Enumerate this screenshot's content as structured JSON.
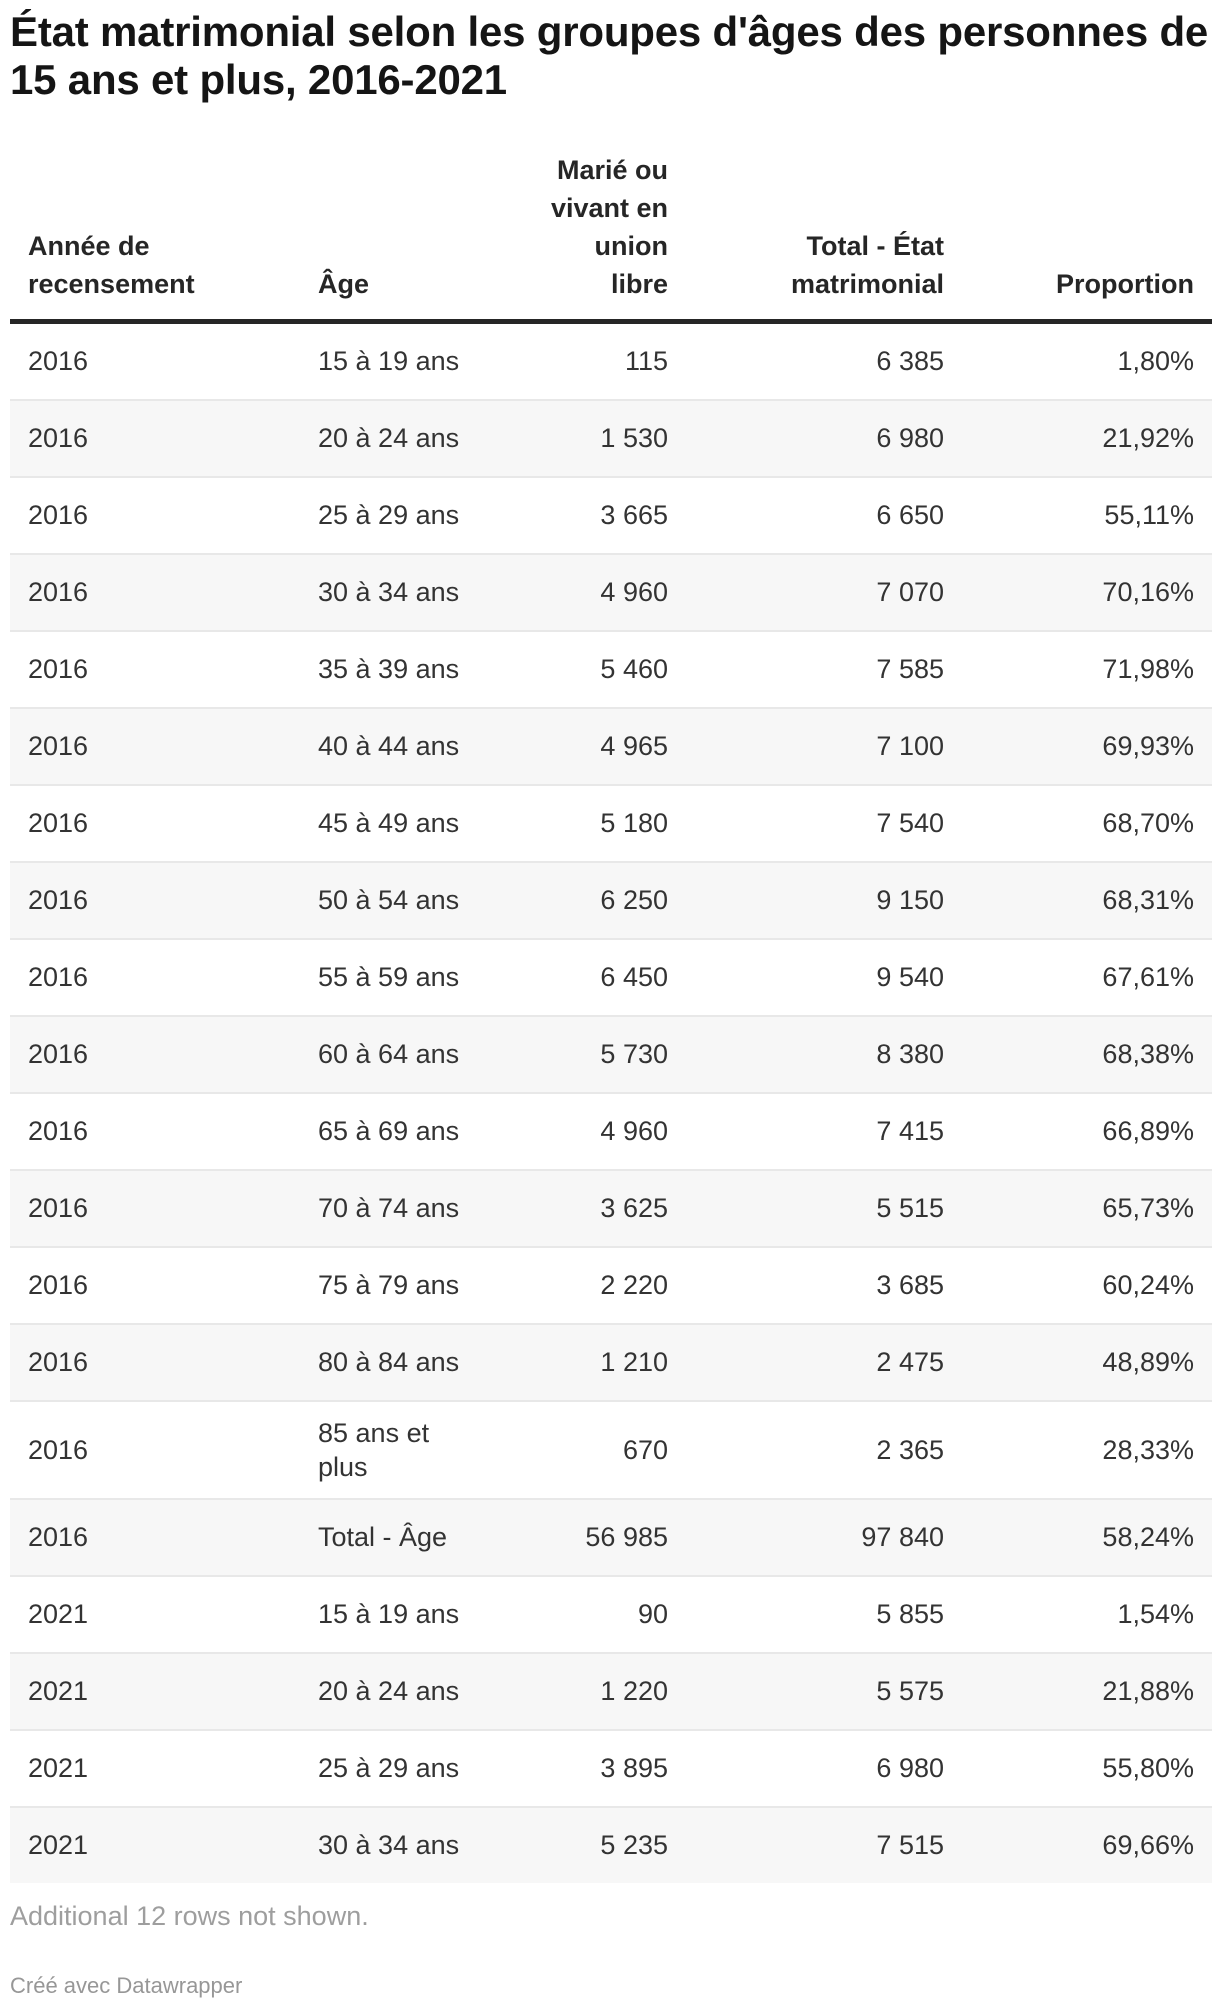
{
  "display": {
    "title": "État matrimonial selon les groupes d'âges des personnes de\n15 ans et plus, 2016-2021",
    "columns": [
      {
        "label": "Année de\nrecensement",
        "align": "left"
      },
      {
        "label": "Âge",
        "align": "left"
      },
      {
        "label": "Marié ou\nvivant en\nunion\nlibre",
        "align": "right"
      },
      {
        "label": "Total - État\nmatrimonial",
        "align": "right"
      },
      {
        "label": "Proportion",
        "align": "right"
      }
    ],
    "rows": [
      [
        "2016",
        "15 à 19 ans",
        "115",
        "6 385",
        "1,80%"
      ],
      [
        "2016",
        "20 à 24 ans",
        "1 530",
        "6 980",
        "21,92%"
      ],
      [
        "2016",
        "25 à 29 ans",
        "3 665",
        "6 650",
        "55,11%"
      ],
      [
        "2016",
        "30 à 34 ans",
        "4 960",
        "7 070",
        "70,16%"
      ],
      [
        "2016",
        "35 à 39 ans",
        "5 460",
        "7 585",
        "71,98%"
      ],
      [
        "2016",
        "40 à 44 ans",
        "4 965",
        "7 100",
        "69,93%"
      ],
      [
        "2016",
        "45 à 49 ans",
        "5 180",
        "7 540",
        "68,70%"
      ],
      [
        "2016",
        "50 à 54 ans",
        "6 250",
        "9 150",
        "68,31%"
      ],
      [
        "2016",
        "55 à 59 ans",
        "6 450",
        "9 540",
        "67,61%"
      ],
      [
        "2016",
        "60 à 64 ans",
        "5 730",
        "8 380",
        "68,38%"
      ],
      [
        "2016",
        "65 à 69 ans",
        "4 960",
        "7 415",
        "66,89%"
      ],
      [
        "2016",
        "70 à 74 ans",
        "3 625",
        "5 515",
        "65,73%"
      ],
      [
        "2016",
        "75 à 79 ans",
        "2 220",
        "3 685",
        "60,24%"
      ],
      [
        "2016",
        "80 à 84 ans",
        "1 210",
        "2 475",
        "48,89%"
      ],
      [
        "2016",
        "85 ans et\nplus",
        "670",
        "2 365",
        "28,33%"
      ],
      [
        "2016",
        "Total - Âge",
        "56 985",
        "97 840",
        "58,24%"
      ],
      [
        "2021",
        "15 à 19 ans",
        "90",
        "5 855",
        "1,54%"
      ],
      [
        "2021",
        "20 à 24 ans",
        "1 220",
        "5 575",
        "21,88%"
      ],
      [
        "2021",
        "25 à 29 ans",
        "3 895",
        "6 980",
        "55,80%"
      ],
      [
        "2021",
        "30 à 34 ans",
        "5 235",
        "7 515",
        "69,66%"
      ]
    ],
    "note": "Additional 12 rows not shown.",
    "attribution": "Créé avec Datawrapper"
  },
  "chart_data": {
    "type": "table",
    "title": "État matrimonial selon les groupes d'âges des personnes de 15 ans et plus, 2016-2021",
    "columns": [
      "Année de recensement",
      "Âge",
      "Marié ou vivant en union libre",
      "Total - État matrimonial",
      "Proportion"
    ],
    "rows": [
      {
        "annee_de_recensement": 2016,
        "age": "15 à 19 ans",
        "marie_ou_union_libre": 115,
        "total_etat_matrimonial": 6385,
        "proportion_pct": 1.8
      },
      {
        "annee_de_recensement": 2016,
        "age": "20 à 24 ans",
        "marie_ou_union_libre": 1530,
        "total_etat_matrimonial": 6980,
        "proportion_pct": 21.92
      },
      {
        "annee_de_recensement": 2016,
        "age": "25 à 29 ans",
        "marie_ou_union_libre": 3665,
        "total_etat_matrimonial": 6650,
        "proportion_pct": 55.11
      },
      {
        "annee_de_recensement": 2016,
        "age": "30 à 34 ans",
        "marie_ou_union_libre": 4960,
        "total_etat_matrimonial": 7070,
        "proportion_pct": 70.16
      },
      {
        "annee_de_recensement": 2016,
        "age": "35 à 39 ans",
        "marie_ou_union_libre": 5460,
        "total_etat_matrimonial": 7585,
        "proportion_pct": 71.98
      },
      {
        "annee_de_recensement": 2016,
        "age": "40 à 44 ans",
        "marie_ou_union_libre": 4965,
        "total_etat_matrimonial": 7100,
        "proportion_pct": 69.93
      },
      {
        "annee_de_recensement": 2016,
        "age": "45 à 49 ans",
        "marie_ou_union_libre": 5180,
        "total_etat_matrimonial": 7540,
        "proportion_pct": 68.7
      },
      {
        "annee_de_recensement": 2016,
        "age": "50 à 54 ans",
        "marie_ou_union_libre": 6250,
        "total_etat_matrimonial": 9150,
        "proportion_pct": 68.31
      },
      {
        "annee_de_recensement": 2016,
        "age": "55 à 59 ans",
        "marie_ou_union_libre": 6450,
        "total_etat_matrimonial": 9540,
        "proportion_pct": 67.61
      },
      {
        "annee_de_recensement": 2016,
        "age": "60 à 64 ans",
        "marie_ou_union_libre": 5730,
        "total_etat_matrimonial": 8380,
        "proportion_pct": 68.38
      },
      {
        "annee_de_recensement": 2016,
        "age": "65 à 69 ans",
        "marie_ou_union_libre": 4960,
        "total_etat_matrimonial": 7415,
        "proportion_pct": 66.89
      },
      {
        "annee_de_recensement": 2016,
        "age": "70 à 74 ans",
        "marie_ou_union_libre": 3625,
        "total_etat_matrimonial": 5515,
        "proportion_pct": 65.73
      },
      {
        "annee_de_recensement": 2016,
        "age": "75 à 79 ans",
        "marie_ou_union_libre": 2220,
        "total_etat_matrimonial": 3685,
        "proportion_pct": 60.24
      },
      {
        "annee_de_recensement": 2016,
        "age": "80 à 84 ans",
        "marie_ou_union_libre": 1210,
        "total_etat_matrimonial": 2475,
        "proportion_pct": 48.89
      },
      {
        "annee_de_recensement": 2016,
        "age": "85 ans et plus",
        "marie_ou_union_libre": 670,
        "total_etat_matrimonial": 2365,
        "proportion_pct": 28.33
      },
      {
        "annee_de_recensement": 2016,
        "age": "Total - Âge",
        "marie_ou_union_libre": 56985,
        "total_etat_matrimonial": 97840,
        "proportion_pct": 58.24
      },
      {
        "annee_de_recensement": 2021,
        "age": "15 à 19 ans",
        "marie_ou_union_libre": 90,
        "total_etat_matrimonial": 5855,
        "proportion_pct": 1.54
      },
      {
        "annee_de_recensement": 2021,
        "age": "20 à 24 ans",
        "marie_ou_union_libre": 1220,
        "total_etat_matrimonial": 5575,
        "proportion_pct": 21.88
      },
      {
        "annee_de_recensement": 2021,
        "age": "25 à 29 ans",
        "marie_ou_union_libre": 3895,
        "total_etat_matrimonial": 6980,
        "proportion_pct": 55.8
      },
      {
        "annee_de_recensement": 2021,
        "age": "30 à 34 ans",
        "marie_ou_union_libre": 5235,
        "total_etat_matrimonial": 7515,
        "proportion_pct": 69.66
      }
    ],
    "note": "Additional 12 rows not shown.",
    "rows_hidden": 12
  },
  "colors": {
    "title_text": "#151515",
    "header_text": "#262626",
    "header_rule": "#262626",
    "body_text": "#333333",
    "row_stripe": "#f7f7f7",
    "row_separator": "#e8e8e8",
    "muted_text": "#9e9e9e"
  }
}
